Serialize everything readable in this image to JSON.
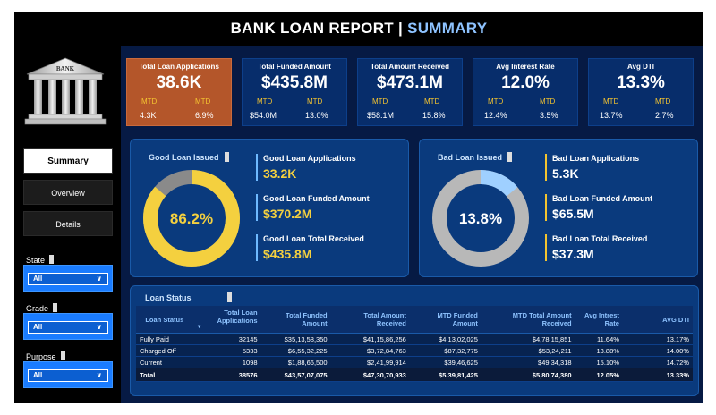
{
  "report": {
    "title_main": "BANK LOAN REPORT",
    "title_sep": " | ",
    "title_accent": "SUMMARY"
  },
  "sidebar": {
    "logo_text": "BANK",
    "nav": [
      {
        "label": "Summary",
        "active": true
      },
      {
        "label": "Overview",
        "active": false
      },
      {
        "label": "Details",
        "active": false
      }
    ],
    "slicers": [
      {
        "label": "State",
        "value": "All"
      },
      {
        "label": "Grade",
        "value": "All"
      },
      {
        "label": "Purpose",
        "value": "All"
      }
    ]
  },
  "kpis": [
    {
      "title": "Total Loan Applications",
      "value": "38.6K",
      "mtd_left": "MTD",
      "mtd_right": "MTD",
      "sub_left": "4.3K",
      "sub_right": "6.9%"
    },
    {
      "title": "Total Funded Amount",
      "value": "$435.8M",
      "mtd_left": "MTD",
      "mtd_right": "MTD",
      "sub_left": "$54.0M",
      "sub_right": "13.0%"
    },
    {
      "title": "Total  Amount Received",
      "value": "$473.1M",
      "mtd_left": "MTD",
      "mtd_right": "MTD",
      "sub_left": "$58.1M",
      "sub_right": "15.8%"
    },
    {
      "title": "Avg Interest Rate",
      "value": "12.0%",
      "mtd_left": "MTD",
      "mtd_right": "MTD",
      "sub_left": "12.4%",
      "sub_right": "3.5%"
    },
    {
      "title": "Avg DTI",
      "value": "13.3%",
      "mtd_left": "MTD",
      "mtd_right": "MTD",
      "sub_left": "13.7%",
      "sub_right": "2.7%"
    }
  ],
  "good": {
    "title": "Good Loan Issued",
    "percent_label": "86.2%",
    "percent": 86.2,
    "colors": {
      "fill": "#f4d03f",
      "rest": "#8a8a8a"
    },
    "stats": [
      {
        "label": "Good Loan Applications",
        "value": "33.2K"
      },
      {
        "label": "Good Loan Funded Amount",
        "value": "$370.2M"
      },
      {
        "label": "Good Loan Total Received",
        "value": "$435.8M"
      }
    ]
  },
  "bad": {
    "title": "Bad Loan Issued",
    "percent_label": "13.8%",
    "percent": 13.8,
    "colors": {
      "fill": "#9fd0ff",
      "rest": "#b8b8b8"
    },
    "stats": [
      {
        "label": "Bad Loan Applications",
        "value": "5.3K"
      },
      {
        "label": "Bad Loan Funded Amount",
        "value": "$65.5M"
      },
      {
        "label": "Bad Loan Total Received",
        "value": "$37.3M"
      }
    ]
  },
  "loan_status": {
    "title": "Loan Status",
    "headers": [
      "Loan Status",
      "Total Loan Applications",
      "Total Funded Amount",
      "Total Amount Received",
      "MTD Funded Amount",
      "MTD Total Amount Received",
      "Avg Intrest Rate",
      "AVG DTI"
    ],
    "rows": [
      [
        "Fully Paid",
        "32145",
        "$35,13,58,350",
        "$41,15,86,256",
        "$4,13,02,025",
        "$4,78,15,851",
        "11.64%",
        "13.17%"
      ],
      [
        "Charged Off",
        "5333",
        "$6,55,32,225",
        "$3,72,84,763",
        "$87,32,775",
        "$53,24,211",
        "13.88%",
        "14.00%"
      ],
      [
        "Current",
        "1098",
        "$1,88,66,500",
        "$2,41,99,914",
        "$39,46,625",
        "$49,34,318",
        "15.10%",
        "14.72%"
      ]
    ],
    "total": [
      "Total",
      "38576",
      "$43,57,07,075",
      "$47,30,70,933",
      "$5,39,81,425",
      "$5,80,74,380",
      "12.05%",
      "13.33%"
    ]
  }
}
